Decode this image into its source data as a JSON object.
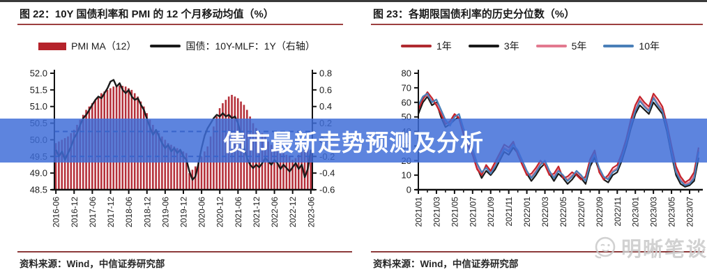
{
  "page": {
    "banner": {
      "text": "债市最新走势预测及分析",
      "bg_color": "#3e6cd8",
      "text_color": "#ffffff"
    },
    "watermark": {
      "text": "明晰笔谈",
      "icon": "winking-face-icon",
      "color": "#c9c9c9"
    },
    "source_label": "资料来源：Wind，中信证券研究部"
  },
  "chart_data": [
    {
      "type": "bar",
      "panel": "left",
      "title": "图 22：10Y 国债利率和 PMI 的 12 个月移动均值（%）",
      "source": "资料来源：Wind，中信证券研究部",
      "x_start": "2016-06",
      "x_freq": "monthly",
      "x_tick_labels": [
        "2016-06",
        "2016-12",
        "2017-06",
        "2017-12",
        "2018-06",
        "2018-12",
        "2019-06",
        "2019-12",
        "2020-06",
        "2020-12",
        "2021-06",
        "2021-12",
        "2022-06",
        "2022-12",
        "2023-06"
      ],
      "y_left_axis": {
        "min": 48.5,
        "max": 52.0,
        "tick_labels": [
          "52.0",
          "51.5",
          "51.0",
          "50.5",
          "50.0",
          "49.5",
          "49.0",
          "48.5"
        ]
      },
      "y_right_axis": {
        "min": -0.6,
        "max": 0.8,
        "tick_labels": [
          "0.8",
          "0.6",
          "0.4",
          "0.2",
          "0.0",
          "-0.2",
          "-0.4",
          "-0.6"
        ]
      },
      "bar_series": {
        "name": "PMI MA（12）",
        "axis": "left",
        "color": "#b5303a",
        "values": [
          49.9,
          49.95,
          50.0,
          50.05,
          50.1,
          50.2,
          50.3,
          50.45,
          50.6,
          50.75,
          50.9,
          51.0,
          51.1,
          51.2,
          51.3,
          51.4,
          51.45,
          51.5,
          51.55,
          51.6,
          51.62,
          51.63,
          51.62,
          51.6,
          51.55,
          51.5,
          51.4,
          51.3,
          51.15,
          51.0,
          50.8,
          50.6,
          50.45,
          50.3,
          50.2,
          50.1,
          50.0,
          49.9,
          49.85,
          49.8,
          49.75,
          49.7,
          49.65,
          49.6,
          49.0,
          49.1,
          49.2,
          49.35,
          49.5,
          49.65,
          49.8,
          50.1,
          50.4,
          50.7,
          50.95,
          51.1,
          51.2,
          51.3,
          51.35,
          51.3,
          51.25,
          51.15,
          51.05,
          50.9,
          50.7,
          50.5,
          50.35,
          50.25,
          50.2,
          50.1,
          49.95,
          49.85,
          49.75,
          49.7,
          49.65,
          49.6,
          49.55,
          49.5,
          49.4,
          49.45,
          49.55,
          49.65,
          49.75,
          49.8,
          49.7
        ]
      },
      "line_series": {
        "name": "国债：10Y-MLF：1Y（右轴）",
        "axis": "right",
        "color": "#1a1a1a",
        "values": [
          -0.12,
          -0.2,
          -0.14,
          -0.24,
          -0.16,
          -0.08,
          0.02,
          0.08,
          0.18,
          0.26,
          0.3,
          0.36,
          0.42,
          0.48,
          0.52,
          0.5,
          0.56,
          0.62,
          0.7,
          0.72,
          0.64,
          0.68,
          0.6,
          0.56,
          0.6,
          0.52,
          0.48,
          0.5,
          0.42,
          0.36,
          0.25,
          0.15,
          0.06,
          0.12,
          0.04,
          -0.04,
          -0.1,
          -0.06,
          -0.14,
          -0.1,
          -0.16,
          -0.12,
          -0.2,
          -0.24,
          -0.38,
          -0.48,
          -0.44,
          -0.28,
          -0.1,
          0.05,
          0.14,
          0.2,
          0.26,
          0.3,
          0.28,
          0.32,
          0.28,
          0.3,
          0.26,
          0.28,
          0.2,
          0.05,
          -0.1,
          -0.22,
          -0.3,
          -0.34,
          -0.3,
          -0.33,
          -0.28,
          -0.22,
          -0.26,
          -0.3,
          -0.24,
          -0.28,
          -0.35,
          -0.3,
          -0.34,
          -0.38,
          -0.33,
          -0.28,
          -0.35,
          -0.3,
          -0.45,
          -0.35,
          -0.12
        ]
      },
      "reference_lines": [
        {
          "axis": "right",
          "value": 0.1,
          "style": "dashed",
          "color": "#1e3a8a"
        },
        {
          "axis": "right",
          "value": -0.2,
          "style": "dashed",
          "color": "#1e3a8a"
        }
      ]
    },
    {
      "type": "line",
      "panel": "right",
      "title": "图 23：各期限国债利率的历史分位数（%）",
      "source": "资料来源：Wind，中信证券研究部",
      "x_freq": "semi-monthly samples, 2021/01 – 2023/07",
      "x_tick_labels": [
        "2021/01",
        "2021/03",
        "2021/05",
        "2021/07",
        "2021/09",
        "2021/11",
        "2022/01",
        "2022/03",
        "2022/05",
        "2022/07",
        "2022/09",
        "2022/11",
        "2023/01",
        "2023/03",
        "2023/05",
        "2023/07"
      ],
      "ylim": [
        0,
        80
      ],
      "y_tick_labels": [
        "80",
        "70",
        "60",
        "50",
        "40",
        "30",
        "20",
        "10",
        "0"
      ],
      "series": [
        {
          "name": "1年",
          "color": "#c4232b",
          "values": [
            55,
            62,
            67,
            63,
            58,
            52,
            45,
            47,
            52,
            49,
            38,
            30,
            24,
            14,
            10,
            17,
            13,
            19,
            25,
            31,
            29,
            33,
            24,
            17,
            10,
            11,
            15,
            20,
            17,
            10,
            11,
            16,
            8,
            9,
            12,
            10,
            7,
            9,
            21,
            27,
            12,
            7,
            10,
            15,
            17,
            25,
            35,
            48,
            58,
            64,
            60,
            57,
            66,
            62,
            57,
            45,
            30,
            16,
            9,
            5,
            7,
            12,
            29
          ]
        },
        {
          "name": "3年",
          "color": "#1a1a1a",
          "values": [
            52,
            60,
            64,
            58,
            60,
            50,
            43,
            45,
            48,
            50,
            40,
            32,
            25,
            15,
            8,
            13,
            10,
            14,
            20,
            26,
            24,
            29,
            25,
            18,
            11,
            6,
            10,
            15,
            18,
            11,
            6,
            11,
            8,
            4,
            7,
            11,
            8,
            4,
            16,
            22,
            13,
            7,
            5,
            10,
            12,
            20,
            30,
            42,
            52,
            58,
            55,
            52,
            60,
            56,
            52,
            40,
            24,
            10,
            4,
            2,
            3,
            6,
            22
          ]
        },
        {
          "name": "5年",
          "color": "#e2798f",
          "values": [
            56,
            63,
            65,
            61,
            59,
            53,
            46,
            46,
            51,
            50,
            40,
            33,
            26,
            16,
            11,
            16,
            12,
            17,
            23,
            29,
            27,
            32,
            26,
            19,
            12,
            9,
            13,
            18,
            19,
            12,
            9,
            14,
            9,
            7,
            10,
            12,
            9,
            7,
            19,
            25,
            14,
            8,
            8,
            13,
            15,
            23,
            33,
            45,
            55,
            62,
            58,
            55,
            64,
            59,
            55,
            43,
            28,
            14,
            7,
            4,
            5,
            10,
            27
          ]
        },
        {
          "name": "10年",
          "color": "#4a7fb8",
          "values": [
            58,
            64,
            66,
            60,
            62,
            55,
            48,
            44,
            50,
            52,
            42,
            35,
            28,
            18,
            12,
            15,
            11,
            16,
            22,
            28,
            26,
            31,
            27,
            20,
            13,
            8,
            12,
            17,
            20,
            13,
            8,
            13,
            10,
            6,
            9,
            13,
            10,
            6,
            18,
            24,
            15,
            9,
            7,
            12,
            14,
            22,
            32,
            44,
            54,
            61,
            57,
            54,
            63,
            58,
            54,
            42,
            26,
            12,
            6,
            3,
            4,
            8,
            26
          ]
        }
      ]
    }
  ]
}
